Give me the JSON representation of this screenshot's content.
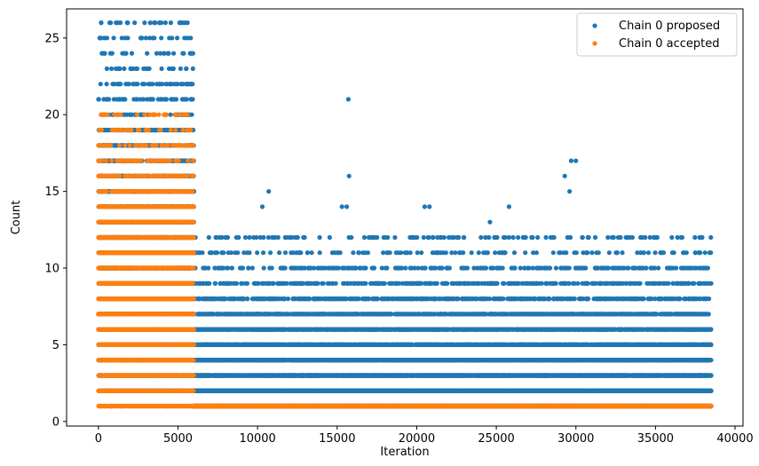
{
  "chart_data": {
    "type": "scatter",
    "xlabel": "Iteration",
    "ylabel": "Count",
    "xlim": [
      -2000,
      40500
    ],
    "ylim": [
      -0.3,
      26.9
    ],
    "xticks": [
      0,
      5000,
      10000,
      15000,
      20000,
      25000,
      30000,
      35000,
      40000
    ],
    "xtick_labels": [
      "0",
      "5000",
      "10000",
      "15000",
      "20000",
      "25000",
      "30000",
      "35000",
      "40000"
    ],
    "yticks": [
      0,
      5,
      10,
      15,
      20,
      25
    ],
    "ytick_labels": [
      "0",
      "5",
      "10",
      "15",
      "20",
      "25"
    ],
    "grid": false,
    "legend_position": "top-right",
    "series": [
      {
        "name": "Chain 0 proposed",
        "color": "#1f77b4",
        "segments": [
          {
            "x_range": [
              0,
              6000
            ],
            "bands": [
              [
                2,
                15
              ],
              [
                3,
                15
              ],
              [
                4,
                15
              ],
              [
                5,
                15
              ],
              [
                6,
                15
              ],
              [
                7,
                15
              ],
              [
                8,
                15
              ],
              [
                9,
                15
              ],
              [
                10,
                15
              ],
              [
                11,
                15
              ],
              [
                12,
                15
              ],
              [
                13,
                14
              ],
              [
                14,
                12
              ],
              [
                15,
                10
              ],
              [
                16,
                9
              ],
              [
                17,
                7
              ],
              [
                18,
                6
              ],
              [
                19,
                5
              ],
              [
                20,
                2
              ],
              [
                21,
                2
              ],
              [
                22,
                2
              ],
              [
                23,
                1
              ],
              [
                24,
                1
              ],
              [
                25,
                1
              ],
              [
                26,
                1
              ]
            ]
          },
          {
            "x_range": [
              6000,
              38500
            ],
            "bands": [
              [
                1,
                45
              ],
              [
                2,
                40
              ],
              [
                3,
                28
              ],
              [
                4,
                18
              ],
              [
                5,
                13
              ],
              [
                6,
                9
              ],
              [
                7,
                6
              ],
              [
                8,
                4
              ],
              [
                9,
                3
              ],
              [
                10,
                2
              ],
              [
                11,
                1
              ],
              [
                12,
                1
              ]
            ]
          }
        ],
        "points": [
          [
            0,
            21
          ],
          [
            300,
            20
          ],
          [
            3950,
            26
          ],
          [
            3950,
            25
          ],
          [
            5800,
            25
          ],
          [
            5850,
            24
          ],
          [
            5800,
            22
          ],
          [
            15700,
            21
          ],
          [
            15750,
            16
          ],
          [
            10700,
            15
          ],
          [
            29700,
            17
          ],
          [
            30000,
            17
          ],
          [
            29300,
            16
          ],
          [
            29600,
            15
          ],
          [
            20500,
            14
          ],
          [
            20800,
            14
          ],
          [
            25800,
            14
          ],
          [
            24600,
            13
          ],
          [
            21000,
            12
          ],
          [
            10300,
            14
          ],
          [
            15300,
            14
          ],
          [
            15600,
            14
          ],
          [
            38000,
            4
          ],
          [
            38300,
            4
          ],
          [
            35600,
            8
          ],
          [
            38500,
            2
          ],
          [
            38500,
            1
          ]
        ]
      },
      {
        "name": "Chain 0 accepted",
        "color": "#ff7f0e",
        "segments": [
          {
            "x_range": [
              0,
              6000
            ],
            "bands": [
              [
                1,
                10
              ],
              [
                2,
                12
              ],
              [
                3,
                15
              ],
              [
                4,
                15
              ],
              [
                5,
                15
              ],
              [
                6,
                15
              ],
              [
                7,
                15
              ],
              [
                8,
                15
              ],
              [
                9,
                15
              ],
              [
                10,
                15
              ],
              [
                11,
                14
              ],
              [
                12,
                12
              ],
              [
                13,
                9
              ],
              [
                14,
                8
              ],
              [
                15,
                6
              ],
              [
                16,
                4
              ],
              [
                17,
                2
              ],
              [
                18,
                2
              ],
              [
                19,
                1
              ],
              [
                20,
                1
              ]
            ]
          },
          {
            "x_range": [
              6000,
              38500
            ],
            "bands": [
              [
                1,
                50
              ]
            ]
          }
        ],
        "points": [
          [
            3800,
            20
          ],
          [
            3900,
            19
          ],
          [
            0,
            17
          ],
          [
            4200,
            18
          ],
          [
            5800,
            19
          ],
          [
            2700,
            16
          ],
          [
            2500,
            17
          ]
        ]
      }
    ]
  }
}
